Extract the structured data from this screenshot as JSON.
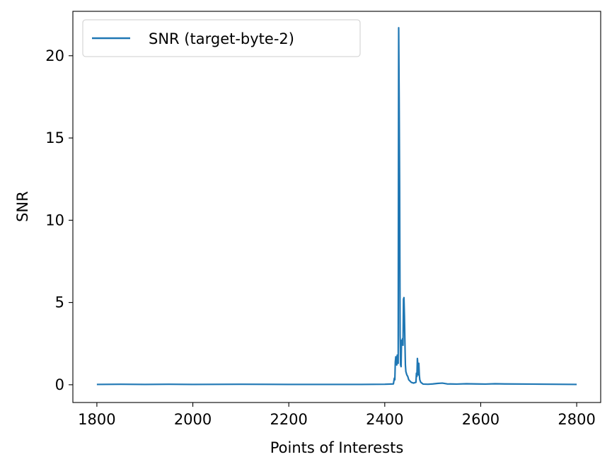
{
  "chart_data": {
    "type": "line",
    "title": "",
    "xlabel": "Points of Interests",
    "ylabel": "SNR",
    "xlim": [
      1750,
      2850
    ],
    "ylim": [
      -1.08,
      22.7
    ],
    "xticks": [
      1800,
      2000,
      2200,
      2400,
      2600,
      2800
    ],
    "yticks": [
      0,
      5,
      10,
      15,
      20
    ],
    "grid": false,
    "legend_position": "top-left",
    "series": [
      {
        "name": "SNR (target-byte-2)",
        "color": "#1f77b4",
        "x": [
          1800,
          1850,
          1900,
          1950,
          2000,
          2100,
          2200,
          2300,
          2350,
          2400,
          2418,
          2420,
          2421,
          2422,
          2423,
          2424,
          2425,
          2426,
          2427,
          2428,
          2429,
          2430,
          2431,
          2432,
          2433,
          2434,
          2435,
          2436,
          2437,
          2438,
          2439,
          2440,
          2441,
          2442,
          2443,
          2444,
          2446,
          2448,
          2450,
          2455,
          2460,
          2465,
          2466,
          2467,
          2468,
          2469,
          2470,
          2471,
          2472,
          2473,
          2475,
          2478,
          2480,
          2490,
          2500,
          2510,
          2520,
          2530,
          2550,
          2570,
          2590,
          2610,
          2630,
          2650,
          2700,
          2750,
          2800
        ],
        "y": [
          0.02,
          0.03,
          0.02,
          0.03,
          0.02,
          0.03,
          0.02,
          0.02,
          0.02,
          0.03,
          0.05,
          0.4,
          0.3,
          1.4,
          1.7,
          1.5,
          1.2,
          1.8,
          1.4,
          1.3,
          21.7,
          17.5,
          12.0,
          3.0,
          1.2,
          1.1,
          2.7,
          2.5,
          2.8,
          2.4,
          5.2,
          5.3,
          4.2,
          2.6,
          1.2,
          0.8,
          0.6,
          0.5,
          0.3,
          0.15,
          0.1,
          0.15,
          0.7,
          0.5,
          1.6,
          1.2,
          0.6,
          1.3,
          0.6,
          0.3,
          0.15,
          0.08,
          0.04,
          0.03,
          0.05,
          0.08,
          0.1,
          0.05,
          0.04,
          0.06,
          0.05,
          0.04,
          0.06,
          0.05,
          0.04,
          0.03,
          0.02
        ]
      }
    ]
  }
}
